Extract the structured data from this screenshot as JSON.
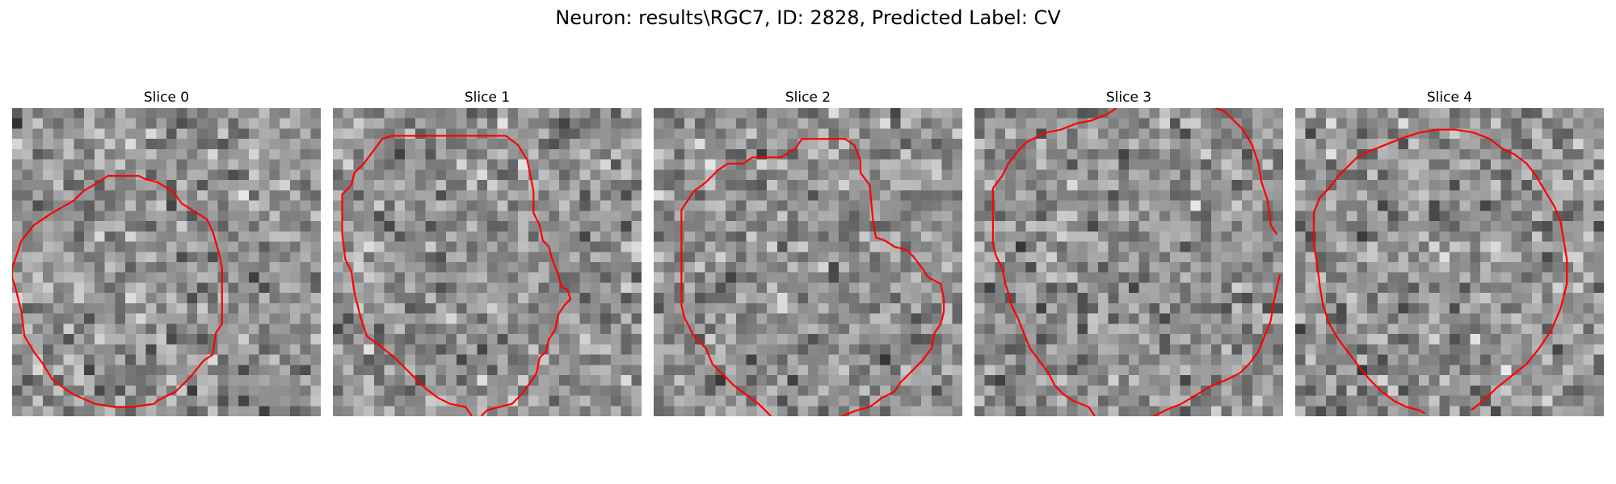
{
  "figure": {
    "title": "Neuron: results\\RGC7, ID: 2828, Predicted Label: CV"
  },
  "colors": {
    "contour": "#ff0000",
    "background": "#ffffff"
  },
  "panels": [
    {
      "title": "Slice 0",
      "seed": 11,
      "grid": 30,
      "contour_closed": true,
      "contour": [
        [
          0.0,
          0.52
        ],
        [
          0.03,
          0.43
        ],
        [
          0.07,
          0.38
        ],
        [
          0.13,
          0.34
        ],
        [
          0.2,
          0.3
        ],
        [
          0.23,
          0.27
        ],
        [
          0.28,
          0.24
        ],
        [
          0.31,
          0.22
        ],
        [
          0.41,
          0.22
        ],
        [
          0.43,
          0.23
        ],
        [
          0.47,
          0.24
        ],
        [
          0.52,
          0.27
        ],
        [
          0.55,
          0.31
        ],
        [
          0.63,
          0.36
        ],
        [
          0.65,
          0.4
        ],
        [
          0.67,
          0.47
        ],
        [
          0.68,
          0.52
        ],
        [
          0.68,
          0.7
        ],
        [
          0.66,
          0.73
        ],
        [
          0.65,
          0.8
        ],
        [
          0.62,
          0.82
        ],
        [
          0.58,
          0.87
        ],
        [
          0.53,
          0.92
        ],
        [
          0.47,
          0.95
        ],
        [
          0.46,
          0.96
        ],
        [
          0.39,
          0.97
        ],
        [
          0.33,
          0.97
        ],
        [
          0.27,
          0.96
        ],
        [
          0.2,
          0.93
        ],
        [
          0.17,
          0.91
        ],
        [
          0.13,
          0.88
        ],
        [
          0.1,
          0.83
        ],
        [
          0.07,
          0.79
        ],
        [
          0.04,
          0.74
        ],
        [
          0.03,
          0.66
        ],
        [
          0.01,
          0.58
        ],
        [
          0.0,
          0.55
        ]
      ]
    },
    {
      "title": "Slice 1",
      "seed": 23,
      "grid": 30,
      "contour_closed": false,
      "contour": [
        [
          0.45,
          1.0
        ],
        [
          0.43,
          0.97
        ],
        [
          0.38,
          0.96
        ],
        [
          0.34,
          0.94
        ],
        [
          0.3,
          0.91
        ],
        [
          0.26,
          0.87
        ],
        [
          0.2,
          0.81
        ],
        [
          0.15,
          0.77
        ],
        [
          0.11,
          0.74
        ],
        [
          0.09,
          0.68
        ],
        [
          0.07,
          0.6
        ],
        [
          0.06,
          0.53
        ],
        [
          0.04,
          0.49
        ],
        [
          0.03,
          0.41
        ],
        [
          0.03,
          0.28
        ],
        [
          0.06,
          0.25
        ],
        [
          0.07,
          0.21
        ],
        [
          0.1,
          0.18
        ],
        [
          0.13,
          0.14
        ],
        [
          0.16,
          0.1
        ],
        [
          0.19,
          0.09
        ],
        [
          0.56,
          0.09
        ],
        [
          0.6,
          0.12
        ],
        [
          0.63,
          0.17
        ],
        [
          0.65,
          0.27
        ],
        [
          0.65,
          0.34
        ],
        [
          0.67,
          0.38
        ],
        [
          0.68,
          0.43
        ],
        [
          0.7,
          0.45
        ],
        [
          0.71,
          0.49
        ],
        [
          0.73,
          0.54
        ],
        [
          0.74,
          0.58
        ],
        [
          0.76,
          0.59
        ],
        [
          0.77,
          0.62
        ],
        [
          0.75,
          0.64
        ],
        [
          0.73,
          0.67
        ],
        [
          0.72,
          0.72
        ],
        [
          0.7,
          0.75
        ],
        [
          0.69,
          0.79
        ],
        [
          0.67,
          0.81
        ],
        [
          0.66,
          0.86
        ],
        [
          0.64,
          0.89
        ],
        [
          0.61,
          0.93
        ],
        [
          0.58,
          0.96
        ],
        [
          0.54,
          0.97
        ],
        [
          0.5,
          0.98
        ],
        [
          0.48,
          1.0
        ]
      ]
    },
    {
      "title": "Slice 2",
      "seed": 37,
      "grid": 30,
      "contour_closed": false,
      "contour": [
        [
          0.38,
          1.0
        ],
        [
          0.34,
          0.96
        ],
        [
          0.26,
          0.9
        ],
        [
          0.22,
          0.86
        ],
        [
          0.19,
          0.83
        ],
        [
          0.17,
          0.78
        ],
        [
          0.13,
          0.74
        ],
        [
          0.1,
          0.68
        ],
        [
          0.09,
          0.64
        ],
        [
          0.09,
          0.33
        ],
        [
          0.13,
          0.27
        ],
        [
          0.17,
          0.24
        ],
        [
          0.21,
          0.2
        ],
        [
          0.24,
          0.18
        ],
        [
          0.29,
          0.18
        ],
        [
          0.32,
          0.16
        ],
        [
          0.41,
          0.16
        ],
        [
          0.43,
          0.15
        ],
        [
          0.46,
          0.13
        ],
        [
          0.48,
          0.1
        ],
        [
          0.62,
          0.1
        ],
        [
          0.65,
          0.12
        ],
        [
          0.67,
          0.17
        ],
        [
          0.67,
          0.21
        ],
        [
          0.7,
          0.25
        ],
        [
          0.71,
          0.36
        ],
        [
          0.72,
          0.42
        ],
        [
          0.75,
          0.43
        ],
        [
          0.78,
          0.45
        ],
        [
          0.82,
          0.46
        ],
        [
          0.84,
          0.48
        ],
        [
          0.87,
          0.52
        ],
        [
          0.89,
          0.55
        ],
        [
          0.93,
          0.57
        ],
        [
          0.94,
          0.62
        ],
        [
          0.94,
          0.66
        ],
        [
          0.93,
          0.7
        ],
        [
          0.91,
          0.73
        ],
        [
          0.9,
          0.78
        ],
        [
          0.87,
          0.82
        ],
        [
          0.84,
          0.85
        ],
        [
          0.8,
          0.89
        ],
        [
          0.78,
          0.92
        ],
        [
          0.74,
          0.94
        ],
        [
          0.7,
          0.97
        ],
        [
          0.66,
          0.98
        ],
        [
          0.61,
          1.0
        ]
      ]
    },
    {
      "title": "Slice 3",
      "seed": 53,
      "grid": 30,
      "contour_closed": false,
      "contour": [
        [
          0.39,
          1.0
        ],
        [
          0.37,
          0.97
        ],
        [
          0.32,
          0.95
        ],
        [
          0.29,
          0.93
        ],
        [
          0.26,
          0.9
        ],
        [
          0.24,
          0.86
        ],
        [
          0.21,
          0.82
        ],
        [
          0.18,
          0.78
        ],
        [
          0.16,
          0.73
        ],
        [
          0.14,
          0.68
        ],
        [
          0.12,
          0.64
        ],
        [
          0.11,
          0.6
        ],
        [
          0.1,
          0.57
        ],
        [
          0.09,
          0.52
        ],
        [
          0.07,
          0.48
        ],
        [
          0.06,
          0.44
        ],
        [
          0.06,
          0.26
        ],
        [
          0.09,
          0.22
        ],
        [
          0.11,
          0.18
        ],
        [
          0.14,
          0.14
        ],
        [
          0.17,
          0.11
        ],
        [
          0.23,
          0.08
        ],
        [
          0.28,
          0.07
        ],
        [
          0.33,
          0.05
        ],
        [
          0.38,
          0.04
        ],
        [
          0.43,
          0.02
        ],
        [
          0.46,
          0.0
        ]
      ],
      "contour_extra": [
        [
          0.78,
          0.0
        ],
        [
          0.81,
          0.01
        ],
        [
          0.84,
          0.04
        ],
        [
          0.87,
          0.07
        ],
        [
          0.9,
          0.12
        ],
        [
          0.92,
          0.18
        ],
        [
          0.93,
          0.24
        ],
        [
          0.95,
          0.3
        ],
        [
          0.96,
          0.38
        ],
        [
          0.98,
          0.41
        ]
      ],
      "contour_extra2": [
        [
          0.99,
          0.54
        ],
        [
          0.98,
          0.58
        ],
        [
          0.97,
          0.63
        ],
        [
          0.96,
          0.69
        ],
        [
          0.94,
          0.74
        ],
        [
          0.92,
          0.79
        ],
        [
          0.89,
          0.83
        ],
        [
          0.86,
          0.86
        ],
        [
          0.82,
          0.88
        ],
        [
          0.77,
          0.9
        ],
        [
          0.72,
          0.93
        ],
        [
          0.67,
          0.96
        ],
        [
          0.62,
          0.98
        ],
        [
          0.58,
          1.0
        ]
      ]
    },
    {
      "title": "Slice 4",
      "seed": 71,
      "grid": 30,
      "contour_closed": false,
      "contour": [
        [
          0.42,
          0.99
        ],
        [
          0.4,
          0.98
        ],
        [
          0.36,
          0.97
        ],
        [
          0.32,
          0.95
        ],
        [
          0.28,
          0.92
        ],
        [
          0.24,
          0.88
        ],
        [
          0.2,
          0.83
        ],
        [
          0.17,
          0.79
        ],
        [
          0.14,
          0.75
        ],
        [
          0.11,
          0.7
        ],
        [
          0.09,
          0.64
        ],
        [
          0.08,
          0.58
        ],
        [
          0.07,
          0.5
        ],
        [
          0.06,
          0.44
        ],
        [
          0.06,
          0.34
        ],
        [
          0.08,
          0.29
        ],
        [
          0.11,
          0.26
        ],
        [
          0.14,
          0.22
        ],
        [
          0.17,
          0.19
        ],
        [
          0.2,
          0.16
        ],
        [
          0.24,
          0.14
        ],
        [
          0.29,
          0.12
        ],
        [
          0.34,
          0.1
        ],
        [
          0.4,
          0.08
        ],
        [
          0.46,
          0.07
        ],
        [
          0.52,
          0.07
        ],
        [
          0.58,
          0.08
        ],
        [
          0.63,
          0.1
        ],
        [
          0.67,
          0.13
        ],
        [
          0.71,
          0.15
        ],
        [
          0.75,
          0.18
        ],
        [
          0.78,
          0.22
        ],
        [
          0.81,
          0.27
        ],
        [
          0.84,
          0.32
        ],
        [
          0.86,
          0.37
        ],
        [
          0.87,
          0.43
        ],
        [
          0.88,
          0.49
        ],
        [
          0.88,
          0.57
        ],
        [
          0.86,
          0.65
        ],
        [
          0.83,
          0.72
        ],
        [
          0.79,
          0.78
        ],
        [
          0.75,
          0.83
        ],
        [
          0.7,
          0.87
        ],
        [
          0.65,
          0.91
        ],
        [
          0.61,
          0.95
        ],
        [
          0.57,
          0.98
        ]
      ]
    }
  ]
}
